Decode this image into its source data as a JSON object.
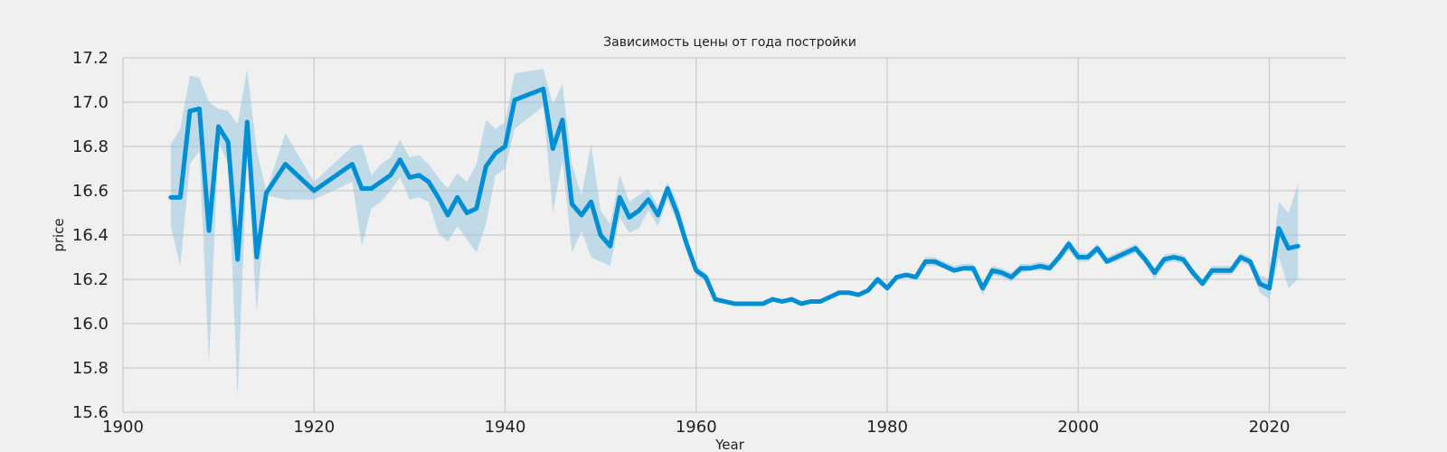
{
  "colors": {
    "background": "#f0f0f0",
    "grid": "#cbcbcb",
    "line": "#008fd5",
    "band": "#8fc4e0"
  },
  "chart_data": {
    "type": "line",
    "title": "Зависимость цены от года постройки",
    "xlabel": "Year",
    "ylabel": "price",
    "xlim": [
      1900,
      2028
    ],
    "ylim": [
      15.6,
      17.2
    ],
    "xticks": [
      1900,
      1920,
      1940,
      1960,
      1980,
      2000,
      2020
    ],
    "yticks": [
      "15.6",
      "15.8",
      "16.0",
      "16.2",
      "16.4",
      "16.6",
      "16.8",
      "17.0",
      "17.2"
    ],
    "grid": true,
    "legend": "none",
    "series": [
      {
        "x": [
          1905,
          1906,
          1907,
          1908,
          1909,
          1910,
          1911,
          1912,
          1913,
          1914,
          1915,
          1917,
          1920,
          1924,
          1925,
          1926,
          1927,
          1928,
          1929,
          1930,
          1931,
          1932,
          1933,
          1934,
          1935,
          1936,
          1937,
          1938,
          1939,
          1940,
          1941,
          1944,
          1945,
          1946,
          1947,
          1948,
          1949,
          1950,
          1951,
          1952,
          1953,
          1954,
          1955,
          1956,
          1957,
          1958,
          1959,
          1960,
          1961,
          1962,
          1963,
          1964,
          1965,
          1966,
          1967,
          1968,
          1969,
          1970,
          1971,
          1972,
          1973,
          1974,
          1975,
          1976,
          1977,
          1978,
          1979,
          1980,
          1981,
          1982,
          1983,
          1984,
          1985,
          1986,
          1987,
          1988,
          1989,
          1990,
          1991,
          1992,
          1993,
          1994,
          1995,
          1996,
          1997,
          1998,
          1999,
          2000,
          2001,
          2002,
          2003,
          2004,
          2005,
          2006,
          2007,
          2008,
          2009,
          2010,
          2011,
          2012,
          2013,
          2014,
          2015,
          2016,
          2017,
          2018,
          2019,
          2020,
          2021,
          2022,
          2023
        ],
        "y": [
          16.57,
          16.57,
          16.96,
          16.97,
          16.42,
          16.89,
          16.82,
          16.29,
          16.91,
          16.3,
          16.59,
          16.72,
          16.6,
          16.72,
          16.61,
          16.61,
          16.64,
          16.67,
          16.74,
          16.66,
          16.67,
          16.64,
          16.57,
          16.49,
          16.57,
          16.5,
          16.52,
          16.71,
          16.77,
          16.8,
          17.01,
          17.06,
          16.79,
          16.92,
          16.54,
          16.49,
          16.55,
          16.4,
          16.35,
          16.57,
          16.48,
          16.51,
          16.56,
          16.49,
          16.61,
          16.5,
          16.36,
          16.24,
          16.21,
          16.11,
          16.1,
          16.09,
          16.09,
          16.09,
          16.09,
          16.11,
          16.1,
          16.11,
          16.09,
          16.1,
          16.1,
          16.12,
          16.14,
          16.14,
          16.13,
          16.15,
          16.2,
          16.16,
          16.21,
          16.22,
          16.21,
          16.28,
          16.28,
          16.26,
          16.24,
          16.25,
          16.25,
          16.16,
          16.24,
          16.23,
          16.21,
          16.25,
          16.25,
          16.26,
          16.25,
          16.3,
          16.36,
          16.3,
          16.3,
          16.34,
          16.28,
          16.3,
          16.32,
          16.34,
          16.29,
          16.23,
          16.29,
          16.3,
          16.29,
          16.23,
          16.18,
          16.24,
          16.24,
          16.24,
          16.3,
          16.28,
          16.18,
          16.16,
          16.43,
          16.34,
          16.35
        ],
        "ci_lower": [
          16.44,
          16.26,
          16.72,
          16.78,
          15.82,
          16.82,
          16.72,
          15.67,
          16.75,
          16.05,
          16.58,
          16.56,
          16.56,
          16.64,
          16.35,
          16.52,
          16.55,
          16.6,
          16.66,
          16.56,
          16.57,
          16.55,
          16.41,
          16.37,
          16.44,
          16.38,
          16.32,
          16.45,
          16.67,
          16.7,
          16.88,
          16.98,
          16.5,
          16.74,
          16.32,
          16.42,
          16.3,
          16.28,
          16.26,
          16.48,
          16.41,
          16.43,
          16.51,
          16.44,
          16.56,
          16.46,
          16.33,
          16.22,
          16.19,
          16.1,
          16.09,
          16.08,
          16.08,
          16.08,
          16.08,
          16.1,
          16.09,
          16.1,
          16.08,
          16.09,
          16.09,
          16.11,
          16.13,
          16.13,
          16.12,
          16.14,
          16.18,
          16.15,
          16.2,
          16.21,
          16.2,
          16.26,
          16.26,
          16.25,
          16.23,
          16.24,
          16.23,
          16.13,
          16.22,
          16.21,
          16.19,
          16.23,
          16.24,
          16.24,
          16.24,
          16.28,
          16.33,
          16.28,
          16.28,
          16.32,
          16.27,
          16.28,
          16.3,
          16.32,
          16.27,
          16.2,
          16.27,
          16.28,
          16.27,
          16.21,
          16.17,
          16.22,
          16.22,
          16.22,
          16.28,
          16.26,
          16.14,
          16.11,
          16.3,
          16.16,
          16.2
        ],
        "ci_upper": [
          16.81,
          16.88,
          17.12,
          17.11,
          17.0,
          16.97,
          16.96,
          16.9,
          17.15,
          16.78,
          16.6,
          16.86,
          16.64,
          16.8,
          16.81,
          16.67,
          16.72,
          16.75,
          16.83,
          16.75,
          16.76,
          16.72,
          16.66,
          16.61,
          16.68,
          16.64,
          16.72,
          16.92,
          16.88,
          16.91,
          17.13,
          17.15,
          16.99,
          17.08,
          16.72,
          16.58,
          16.81,
          16.51,
          16.45,
          16.67,
          16.55,
          16.58,
          16.61,
          16.53,
          16.64,
          16.55,
          16.4,
          16.26,
          16.23,
          16.12,
          16.11,
          16.1,
          16.1,
          16.1,
          16.1,
          16.12,
          16.11,
          16.12,
          16.1,
          16.11,
          16.11,
          16.13,
          16.15,
          16.15,
          16.14,
          16.16,
          16.21,
          16.17,
          16.22,
          16.23,
          16.22,
          16.3,
          16.3,
          16.28,
          16.26,
          16.27,
          16.27,
          16.18,
          16.26,
          16.25,
          16.23,
          16.27,
          16.27,
          16.28,
          16.27,
          16.32,
          16.38,
          16.32,
          16.32,
          16.36,
          16.3,
          16.32,
          16.34,
          16.36,
          16.31,
          16.25,
          16.31,
          16.32,
          16.31,
          16.25,
          16.2,
          16.26,
          16.26,
          16.26,
          16.32,
          16.3,
          16.22,
          16.2,
          16.55,
          16.5,
          16.63
        ]
      }
    ]
  }
}
